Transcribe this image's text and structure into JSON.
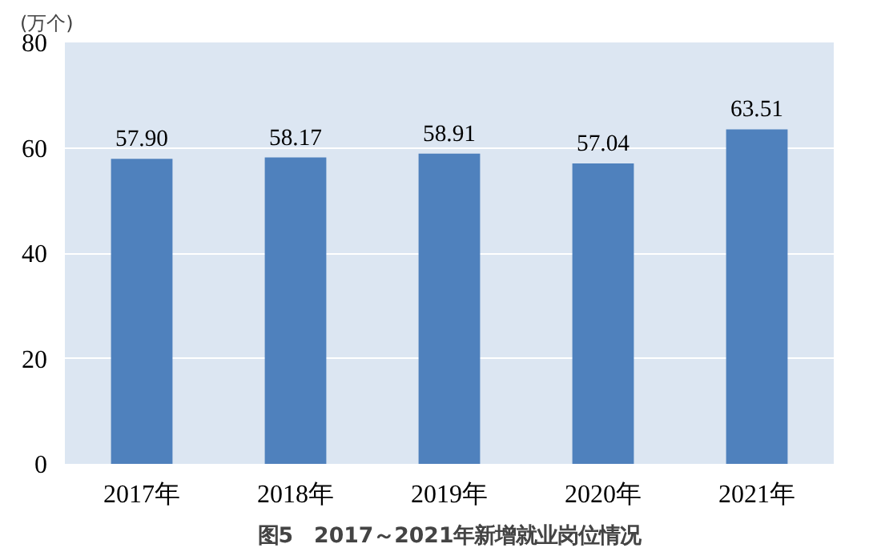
{
  "chart_data": {
    "type": "bar",
    "title": "图5　2017～2021年新增就业岗位情况",
    "ylabel": "(万个)",
    "categories": [
      "2017年",
      "2018年",
      "2019年",
      "2020年",
      "2021年"
    ],
    "values": [
      57.9,
      58.17,
      58.91,
      57.04,
      63.51
    ],
    "value_labels": [
      "57.90",
      "58.17",
      "58.91",
      "57.04",
      "63.51"
    ],
    "color": "#4f81bd",
    "ylim": [
      0,
      80
    ],
    "yticks": [
      0,
      20,
      40,
      60,
      80
    ],
    "grid": "y"
  }
}
